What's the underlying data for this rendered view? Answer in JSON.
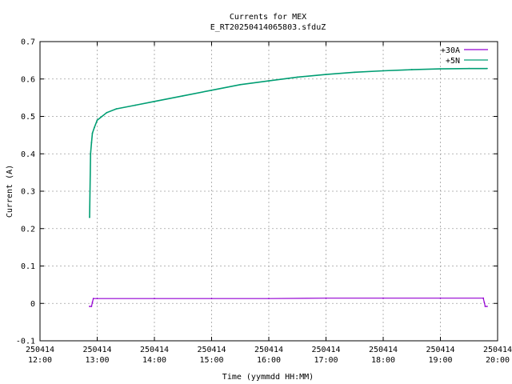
{
  "chart_data": {
    "type": "line",
    "title": "Currents for MEX",
    "subtitle": "E_RT20250414065803.sfduZ",
    "xlabel": "Time (yymmdd HH:MM)",
    "ylabel": "Current (A)",
    "xlim": [
      "12:00",
      "20:00"
    ],
    "ylim": [
      -0.1,
      0.7
    ],
    "x_ticks": [
      {
        "date": "250414",
        "time": "12:00"
      },
      {
        "date": "250414",
        "time": "13:00"
      },
      {
        "date": "250414",
        "time": "14:00"
      },
      {
        "date": "250414",
        "time": "15:00"
      },
      {
        "date": "250414",
        "time": "16:00"
      },
      {
        "date": "250414",
        "time": "17:00"
      },
      {
        "date": "250414",
        "time": "18:00"
      },
      {
        "date": "250414",
        "time": "19:00"
      },
      {
        "date": "250414",
        "time": "20:00"
      }
    ],
    "y_ticks": [
      "-0.1",
      "0",
      "0.1",
      "0.2",
      "0.3",
      "0.4",
      "0.5",
      "0.6",
      "0.7"
    ],
    "grid": true,
    "legend_position": "top-right",
    "series": [
      {
        "name": "+30A",
        "color": "#9400d3",
        "x": [
          "12:52",
          "12:54",
          "12:55",
          "12:56",
          "13:00",
          "14:00",
          "15:00",
          "16:00",
          "17:00",
          "18:00",
          "19:00",
          "19:45",
          "19:46",
          "19:47",
          "19:49"
        ],
        "y": [
          -0.008,
          -0.008,
          0.003,
          0.013,
          0.013,
          0.013,
          0.013,
          0.013,
          0.014,
          0.014,
          0.014,
          0.014,
          0.003,
          -0.008,
          -0.008
        ]
      },
      {
        "name": "+5N",
        "color": "#009e73",
        "x": [
          "12:52",
          "12:53",
          "12:54",
          "12:55",
          "12:57",
          "13:00",
          "13:10",
          "13:20",
          "13:40",
          "14:00",
          "14:30",
          "15:00",
          "15:30",
          "16:00",
          "16:30",
          "17:00",
          "17:30",
          "18:00",
          "18:30",
          "19:00",
          "19:30",
          "19:49"
        ],
        "y": [
          0.23,
          0.4,
          0.43,
          0.455,
          0.47,
          0.49,
          0.51,
          0.52,
          0.53,
          0.54,
          0.555,
          0.57,
          0.585,
          0.595,
          0.605,
          0.612,
          0.618,
          0.622,
          0.625,
          0.627,
          0.628,
          0.628
        ]
      }
    ]
  }
}
